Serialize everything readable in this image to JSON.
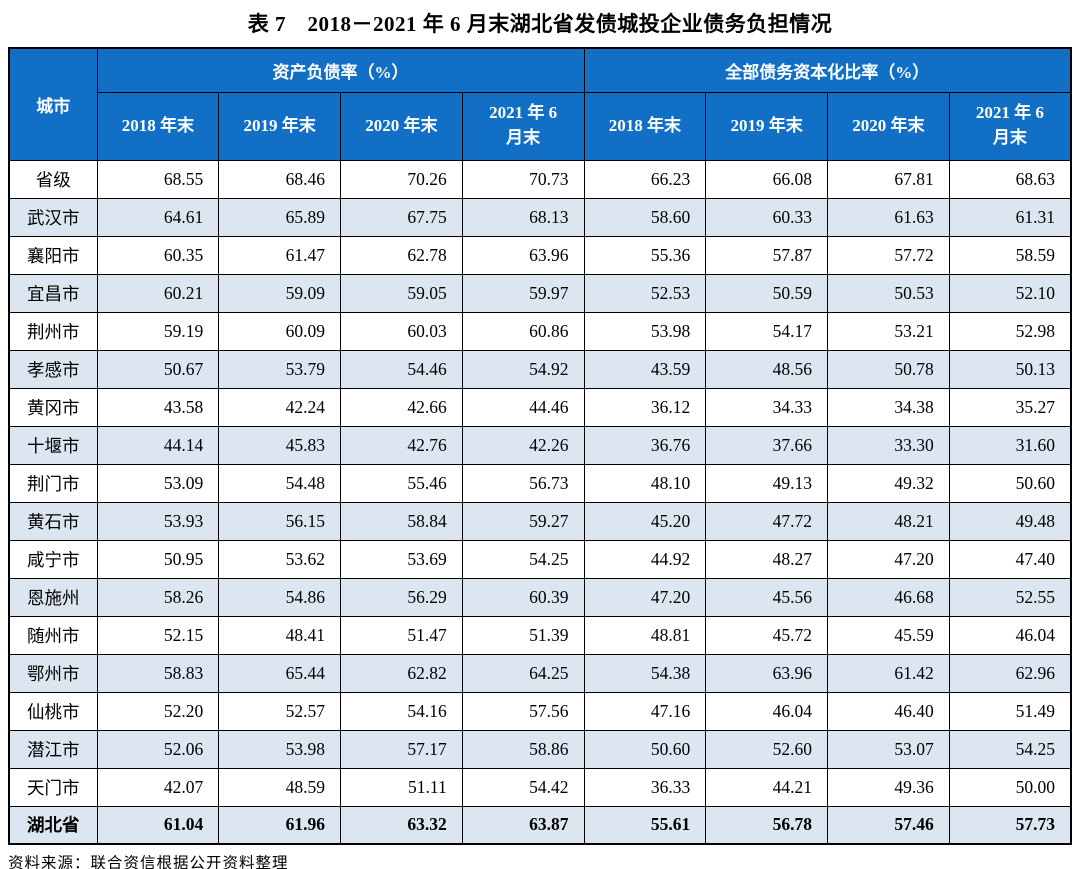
{
  "title": "表 7　2018－2021 年 6 月末湖北省发债城投企业债务负担情况",
  "colors": {
    "header_bg": "#1170C6",
    "header_text": "#FFFFFF",
    "stripe_bg": "#DCE6F1",
    "border": "#000000",
    "text": "#000000"
  },
  "table": {
    "corner_header": "城市",
    "groups": [
      {
        "label": "资产负债率（%）"
      },
      {
        "label": "全部债务资本化比率（%）"
      }
    ],
    "period_headers": [
      "2018 年末",
      "2019 年末",
      "2020 年末",
      "2021 年 6\n月末"
    ],
    "rows": [
      {
        "city": "省级",
        "bold": false,
        "values": [
          "68.55",
          "68.46",
          "70.26",
          "70.73",
          "66.23",
          "66.08",
          "67.81",
          "68.63"
        ]
      },
      {
        "city": "武汉市",
        "bold": false,
        "values": [
          "64.61",
          "65.89",
          "67.75",
          "68.13",
          "58.60",
          "60.33",
          "61.63",
          "61.31"
        ]
      },
      {
        "city": "襄阳市",
        "bold": false,
        "values": [
          "60.35",
          "61.47",
          "62.78",
          "63.96",
          "55.36",
          "57.87",
          "57.72",
          "58.59"
        ]
      },
      {
        "city": "宜昌市",
        "bold": false,
        "values": [
          "60.21",
          "59.09",
          "59.05",
          "59.97",
          "52.53",
          "50.59",
          "50.53",
          "52.10"
        ]
      },
      {
        "city": "荆州市",
        "bold": false,
        "values": [
          "59.19",
          "60.09",
          "60.03",
          "60.86",
          "53.98",
          "54.17",
          "53.21",
          "52.98"
        ]
      },
      {
        "city": "孝感市",
        "bold": false,
        "values": [
          "50.67",
          "53.79",
          "54.46",
          "54.92",
          "43.59",
          "48.56",
          "50.78",
          "50.13"
        ]
      },
      {
        "city": "黄冈市",
        "bold": false,
        "values": [
          "43.58",
          "42.24",
          "42.66",
          "44.46",
          "36.12",
          "34.33",
          "34.38",
          "35.27"
        ]
      },
      {
        "city": "十堰市",
        "bold": false,
        "values": [
          "44.14",
          "45.83",
          "42.76",
          "42.26",
          "36.76",
          "37.66",
          "33.30",
          "31.60"
        ]
      },
      {
        "city": "荆门市",
        "bold": false,
        "values": [
          "53.09",
          "54.48",
          "55.46",
          "56.73",
          "48.10",
          "49.13",
          "49.32",
          "50.60"
        ]
      },
      {
        "city": "黄石市",
        "bold": false,
        "values": [
          "53.93",
          "56.15",
          "58.84",
          "59.27",
          "45.20",
          "47.72",
          "48.21",
          "49.48"
        ]
      },
      {
        "city": "咸宁市",
        "bold": false,
        "values": [
          "50.95",
          "53.62",
          "53.69",
          "54.25",
          "44.92",
          "48.27",
          "47.20",
          "47.40"
        ]
      },
      {
        "city": "恩施州",
        "bold": false,
        "values": [
          "58.26",
          "54.86",
          "56.29",
          "60.39",
          "47.20",
          "45.56",
          "46.68",
          "52.55"
        ]
      },
      {
        "city": "随州市",
        "bold": false,
        "values": [
          "52.15",
          "48.41",
          "51.47",
          "51.39",
          "48.81",
          "45.72",
          "45.59",
          "46.04"
        ]
      },
      {
        "city": "鄂州市",
        "bold": false,
        "values": [
          "58.83",
          "65.44",
          "62.82",
          "64.25",
          "54.38",
          "63.96",
          "61.42",
          "62.96"
        ]
      },
      {
        "city": "仙桃市",
        "bold": false,
        "values": [
          "52.20",
          "52.57",
          "54.16",
          "57.56",
          "47.16",
          "46.04",
          "46.40",
          "51.49"
        ]
      },
      {
        "city": "潜江市",
        "bold": false,
        "values": [
          "52.06",
          "53.98",
          "57.17",
          "58.86",
          "50.60",
          "52.60",
          "53.07",
          "54.25"
        ]
      },
      {
        "city": "天门市",
        "bold": false,
        "values": [
          "42.07",
          "48.59",
          "51.11",
          "54.42",
          "36.33",
          "44.21",
          "49.36",
          "50.00"
        ]
      },
      {
        "city": "湖北省",
        "bold": true,
        "values": [
          "61.04",
          "61.96",
          "63.32",
          "63.87",
          "55.61",
          "56.78",
          "57.46",
          "57.73"
        ]
      }
    ]
  },
  "footer": "资料来源：联合资信根据公开资料整理"
}
